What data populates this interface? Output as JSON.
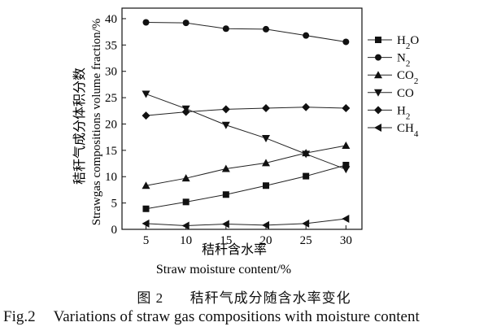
{
  "chart_data": {
    "type": "line",
    "x": [
      5,
      10,
      15,
      20,
      25,
      30
    ],
    "xlim": [
      2,
      32
    ],
    "ylim": [
      0,
      42
    ],
    "xticks": [
      5,
      10,
      15,
      20,
      25,
      30
    ],
    "yticks": [
      0,
      5,
      10,
      15,
      20,
      25,
      30,
      35,
      40
    ],
    "xlabel_cn": "秸秆含水率",
    "xlabel_en": "Straw moisture content/%",
    "ylabel_cn": "秸秆气成分体积分数",
    "ylabel_en": "Strawgas compositions volume fraction/%",
    "grid": false,
    "legend_position": "right",
    "series": [
      {
        "name": "H",
        "sub": "2",
        "post": "O",
        "marker": "square",
        "values": [
          3.9,
          5.2,
          6.6,
          8.3,
          10.1,
          12.2
        ]
      },
      {
        "name": "N",
        "sub": "2",
        "post": "",
        "marker": "circle",
        "values": [
          39.3,
          39.2,
          38.1,
          38.0,
          36.8,
          35.6
        ]
      },
      {
        "name": "CO",
        "sub": "2",
        "post": "",
        "marker": "triangle-up",
        "values": [
          8.3,
          9.7,
          11.5,
          12.6,
          14.5,
          15.9
        ]
      },
      {
        "name": "CO",
        "sub": "",
        "post": "",
        "marker": "triangle-down",
        "values": [
          25.7,
          22.9,
          19.8,
          17.3,
          14.3,
          11.4
        ]
      },
      {
        "name": "H",
        "sub": "2",
        "post": "",
        "marker": "diamond",
        "values": [
          21.6,
          22.3,
          22.8,
          23.0,
          23.2,
          23.0
        ]
      },
      {
        "name": "CH",
        "sub": "4",
        "post": "",
        "marker": "triangle-left",
        "values": [
          1.1,
          0.7,
          1.0,
          0.8,
          1.1,
          2.0
        ]
      }
    ]
  },
  "caption": {
    "cn_fig": "图 2",
    "cn_text": "秸秆气成分随含水率变化",
    "en_fig": "Fig.2",
    "en_text": "Variations of straw gas compositions with moisture content"
  }
}
